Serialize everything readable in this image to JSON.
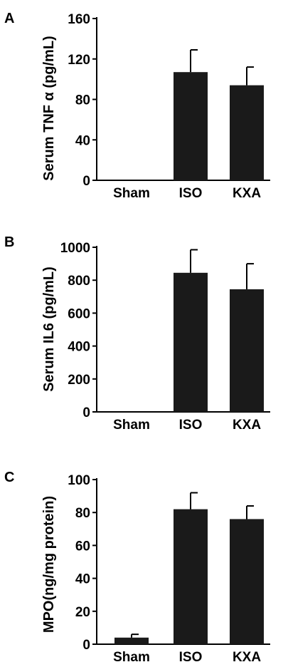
{
  "colors": {
    "bar_fill": "#1a1a1a",
    "axis": "#000000",
    "background": "#ffffff"
  },
  "chart_data": [
    {
      "panel_label": "A",
      "type": "bar",
      "title": "",
      "categories": [
        "Sham",
        "ISO",
        "KXA"
      ],
      "values": [
        0,
        107,
        94
      ],
      "errors": [
        0,
        22,
        18
      ],
      "xlabel": "",
      "ylabel": "Serum TNF α (pg/mL)",
      "ylim": [
        0,
        160
      ],
      "yticks": [
        "0",
        "40",
        "80",
        "120",
        "160"
      ],
      "grid": false,
      "legend": "none"
    },
    {
      "panel_label": "B",
      "type": "bar",
      "title": "",
      "categories": [
        "Sham",
        "ISO",
        "KXA"
      ],
      "values": [
        0,
        845,
        745
      ],
      "errors": [
        0,
        140,
        155
      ],
      "xlabel": "",
      "ylabel": "Serum IL6 (pg/mL)",
      "ylim": [
        0,
        1000
      ],
      "yticks": [
        "0",
        "200",
        "400",
        "600",
        "800",
        "1000"
      ],
      "grid": false,
      "legend": "none"
    },
    {
      "panel_label": "C",
      "type": "bar",
      "title": "",
      "categories": [
        "Sham",
        "ISO",
        "KXA"
      ],
      "values": [
        4,
        82,
        76
      ],
      "errors": [
        2,
        10,
        8
      ],
      "xlabel": "",
      "ylabel": "MPO(ng/mg protein)",
      "ylim": [
        0,
        100
      ],
      "yticks": [
        "0",
        "20",
        "40",
        "60",
        "80",
        "100"
      ],
      "grid": false,
      "legend": "none"
    }
  ]
}
